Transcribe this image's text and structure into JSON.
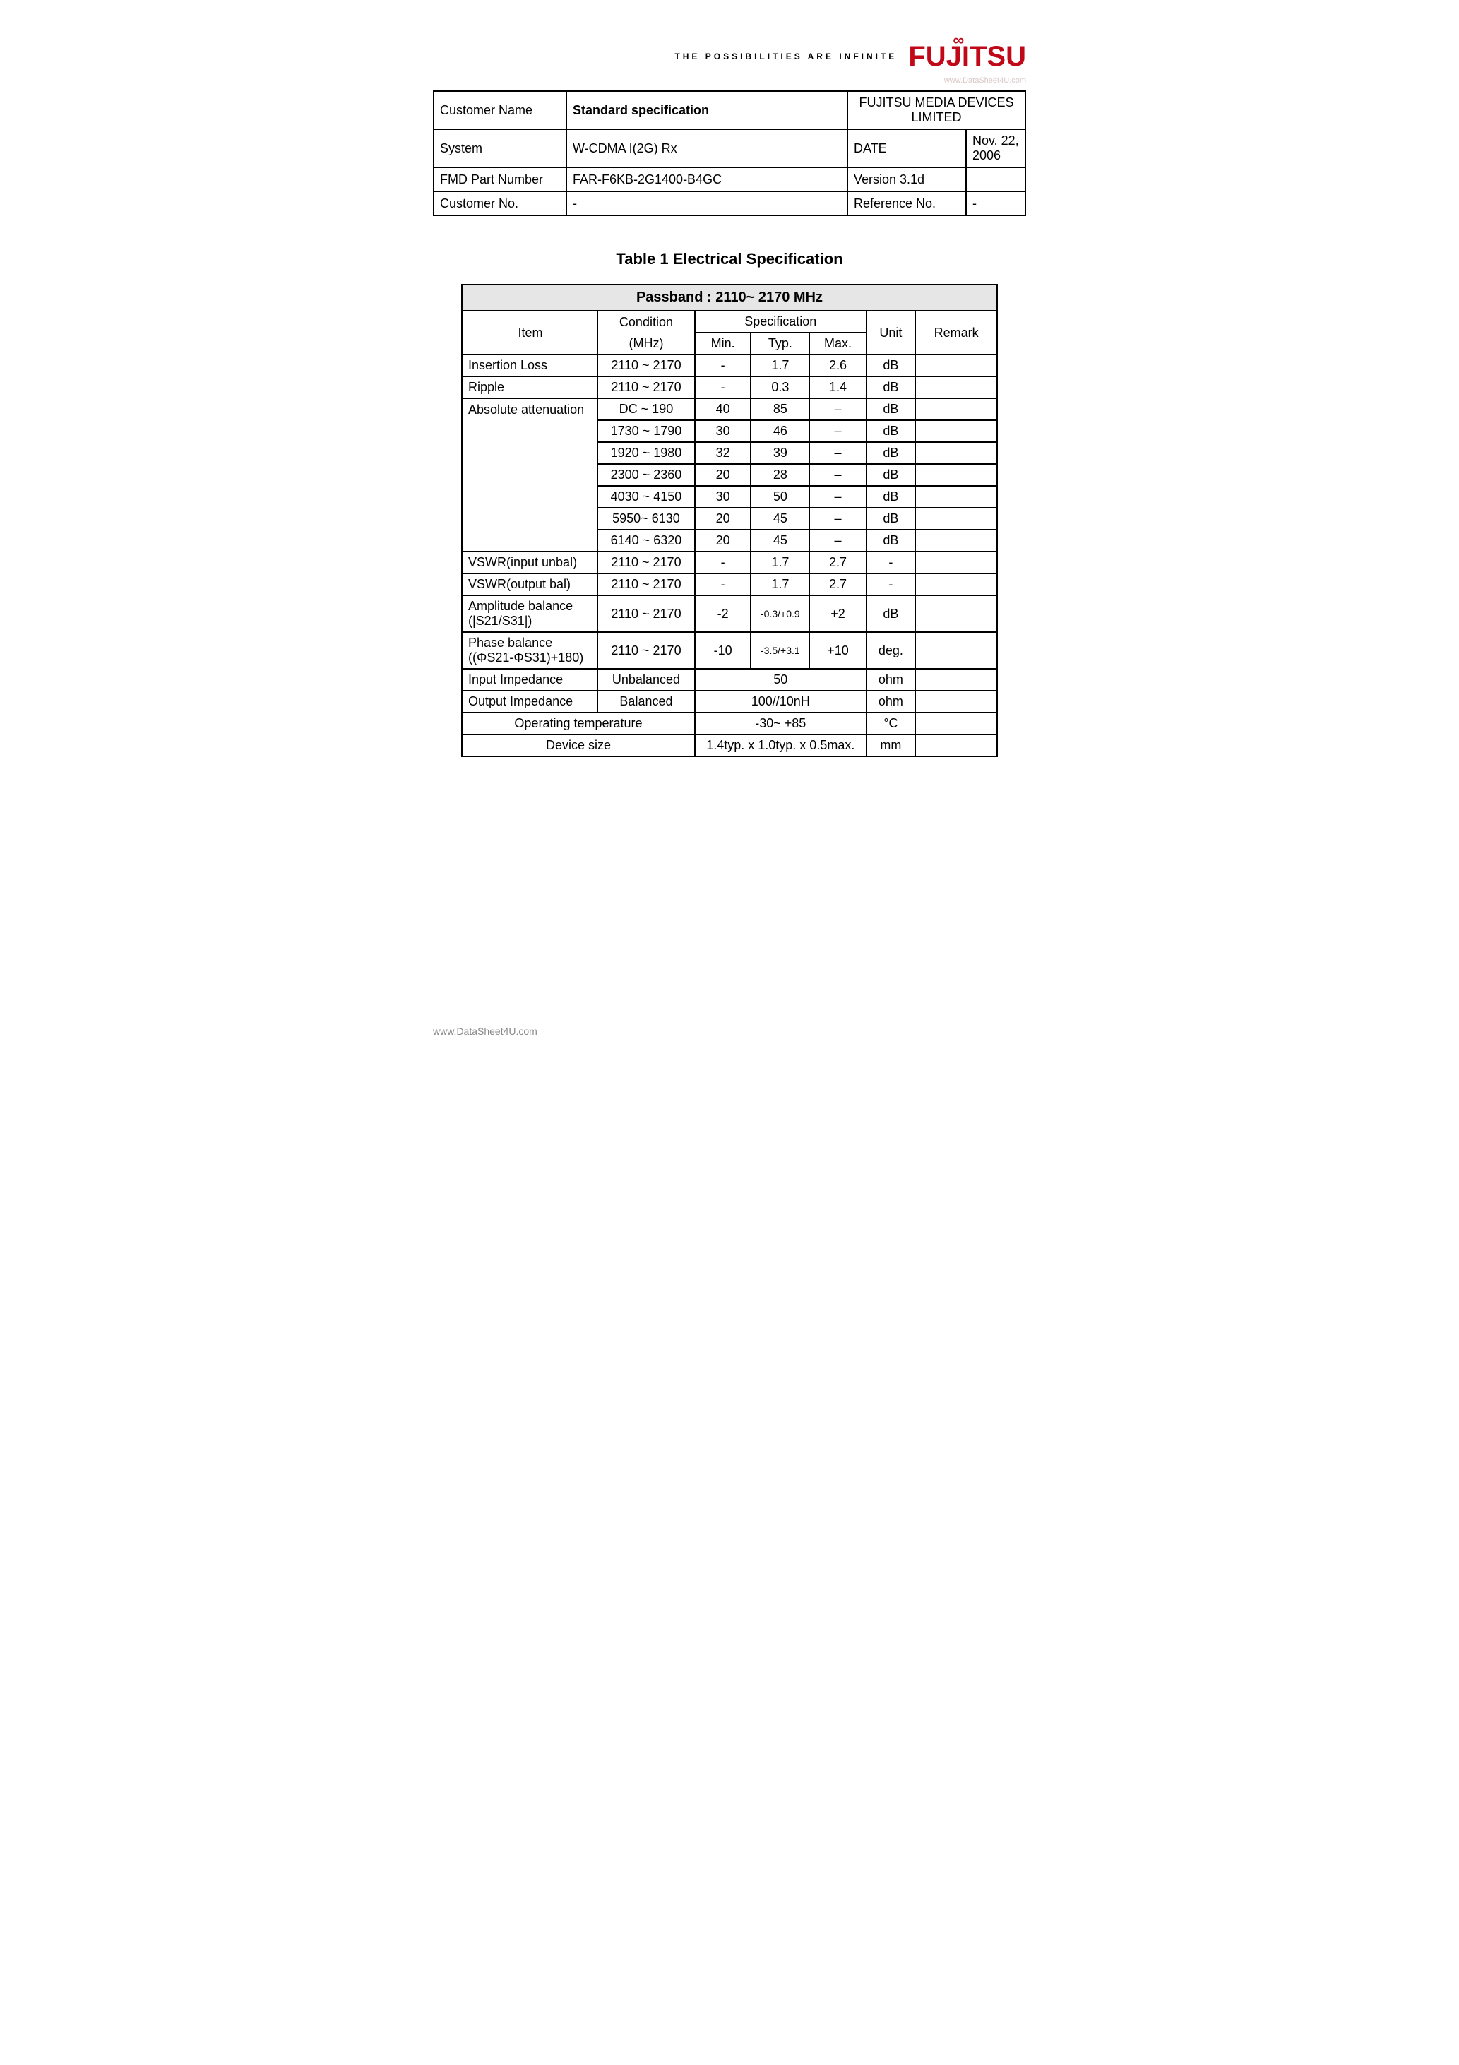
{
  "header": {
    "tagline": "THE POSSIBILITIES ARE INFINITE",
    "logo_text": "FUJITSU",
    "logo_color": "#c00818",
    "watermark": "www.DataSheet4U.com"
  },
  "info": {
    "customer_name_label": "Customer Name",
    "customer_name_value": "Standard specification",
    "company": "FUJITSU MEDIA DEVICES LIMITED",
    "system_label": "System",
    "system_value": "W-CDMA I(2G) Rx",
    "date_label": "DATE",
    "date_value": "Nov. 22, 2006",
    "part_label": "FMD Part Number",
    "part_value": "FAR-F6KB-2G1400-B4GC",
    "version_label": "Version 3.1d",
    "version_value": "",
    "custno_label": "Customer No.",
    "custno_value": "-",
    "ref_label": "Reference No.",
    "ref_value": "-"
  },
  "table_title": "Table 1 Electrical Specification",
  "passband_title": "Passband : 2110~ 2170 MHz",
  "headers": {
    "item": "Item",
    "condition": "Condition",
    "condition_unit": "(MHz)",
    "spec": "Specification",
    "min": "Min.",
    "typ": "Typ.",
    "max": "Max.",
    "unit": "Unit",
    "remark": "Remark"
  },
  "rows": [
    {
      "item": "Insertion Loss",
      "cond": "2110 ~ 2170",
      "min": "-",
      "typ": "1.7",
      "max": "2.6",
      "unit": "dB",
      "remark": ""
    },
    {
      "item": "Ripple",
      "cond": "2110 ~ 2170",
      "min": "-",
      "typ": "0.3",
      "max": "1.4",
      "unit": "dB",
      "remark": ""
    },
    {
      "item": "Absolute attenuation",
      "cond": "DC ~ 190",
      "min": "40",
      "typ": "85",
      "max": "–",
      "unit": "dB",
      "remark": ""
    },
    {
      "item": "",
      "cond": "1730 ~ 1790",
      "min": "30",
      "typ": "46",
      "max": "–",
      "unit": "dB",
      "remark": ""
    },
    {
      "item": "",
      "cond": "1920 ~ 1980",
      "min": "32",
      "typ": "39",
      "max": "–",
      "unit": "dB",
      "remark": ""
    },
    {
      "item": "",
      "cond": "2300 ~ 2360",
      "min": "20",
      "typ": "28",
      "max": "–",
      "unit": "dB",
      "remark": ""
    },
    {
      "item": "",
      "cond": "4030 ~ 4150",
      "min": "30",
      "typ": "50",
      "max": "–",
      "unit": "dB",
      "remark": ""
    },
    {
      "item": "",
      "cond": "5950~ 6130",
      "min": "20",
      "typ": "45",
      "max": "–",
      "unit": "dB",
      "remark": ""
    },
    {
      "item": "",
      "cond": "6140 ~ 6320",
      "min": "20",
      "typ": "45",
      "max": "–",
      "unit": "dB",
      "remark": ""
    },
    {
      "item": "VSWR(input unbal)",
      "cond": "2110 ~ 2170",
      "min": "-",
      "typ": "1.7",
      "max": "2.7",
      "unit": "-",
      "remark": ""
    },
    {
      "item": "VSWR(output bal)",
      "cond": "2110 ~ 2170",
      "min": "-",
      "typ": "1.7",
      "max": "2.7",
      "unit": "-",
      "remark": ""
    }
  ],
  "amp_balance": {
    "item1": "Amplitude balance",
    "item2": "(|S21/S31|)",
    "cond": "2110 ~ 2170",
    "min": "-2",
    "typ": "-0.3/+0.9",
    "max": "+2",
    "unit": "dB",
    "remark": ""
  },
  "phase_balance": {
    "item1": "Phase balance",
    "item2": "((ΦS21-ΦS31)+180)",
    "cond": "2110 ~ 2170",
    "min": "-10",
    "typ": "-3.5/+3.1",
    "max": "+10",
    "unit": "deg.",
    "remark": ""
  },
  "input_imp": {
    "item": "Input Impedance",
    "cond": "Unbalanced",
    "val": "50",
    "unit": "ohm",
    "remark": ""
  },
  "output_imp": {
    "item": "Output Impedance",
    "cond": "Balanced",
    "val": "100//10nH",
    "unit": "ohm",
    "remark": ""
  },
  "op_temp": {
    "item": "Operating temperature",
    "val": "-30~ +85",
    "unit": "°C",
    "remark": ""
  },
  "dev_size": {
    "item": "Device size",
    "val": "1.4typ. x 1.0typ. x 0.5max.",
    "unit": "mm",
    "remark": ""
  },
  "footer_url": "www.DataSheet4U.com"
}
